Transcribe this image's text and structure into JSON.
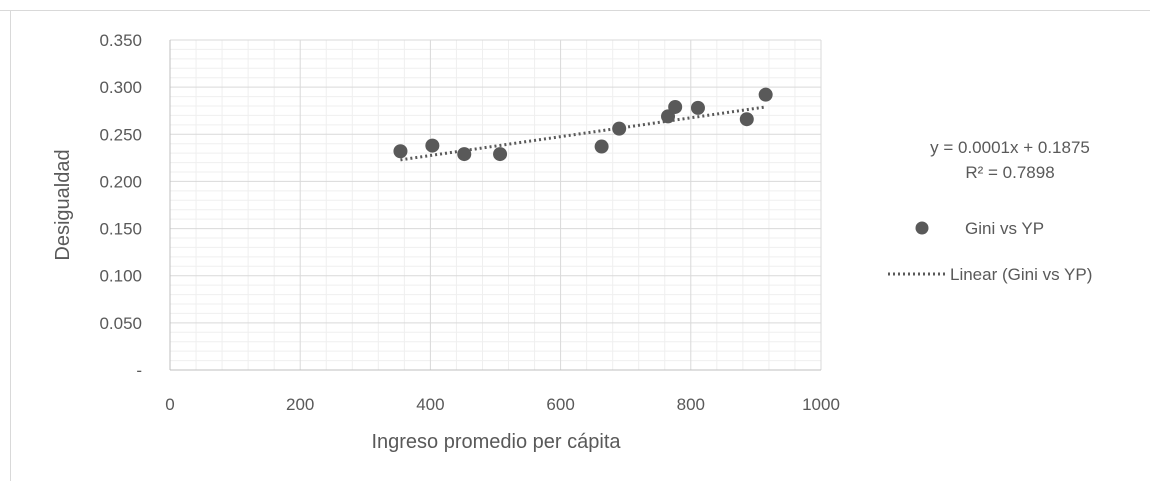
{
  "chart_data": {
    "type": "scatter",
    "xlabel": "Ingreso promedio per cápita",
    "ylabel": "Desigualdad",
    "xlim": [
      0,
      1000
    ],
    "ylim": [
      0,
      0.35
    ],
    "x_ticks": [
      "0",
      "200",
      "400",
      "600",
      "800",
      "1000"
    ],
    "y_ticks": [
      "-",
      "0.050",
      "0.100",
      "0.150",
      "0.200",
      "0.250",
      "0.300",
      "0.350"
    ],
    "grid": "major and minor",
    "legend_position": "right",
    "series": [
      {
        "name": "Gini vs YP",
        "color": "#595959",
        "marker": "circle",
        "points": [
          {
            "x": 354,
            "y": 0.232
          },
          {
            "x": 403,
            "y": 0.238
          },
          {
            "x": 452,
            "y": 0.229
          },
          {
            "x": 507,
            "y": 0.229
          },
          {
            "x": 663,
            "y": 0.237
          },
          {
            "x": 690,
            "y": 0.256
          },
          {
            "x": 765,
            "y": 0.269
          },
          {
            "x": 776,
            "y": 0.279
          },
          {
            "x": 811,
            "y": 0.278
          },
          {
            "x": 886,
            "y": 0.266
          },
          {
            "x": 915,
            "y": 0.292
          }
        ]
      }
    ],
    "trendline": {
      "name": "Linear (Gini vs YP)",
      "type": "linear",
      "style": "dotted",
      "color": "#595959",
      "slope": 0.0001,
      "intercept": 0.1875,
      "x_range": [
        354,
        915
      ],
      "equation": "y = 0.0001x + 0.1875",
      "r_squared": "R² = 0.7898"
    }
  }
}
